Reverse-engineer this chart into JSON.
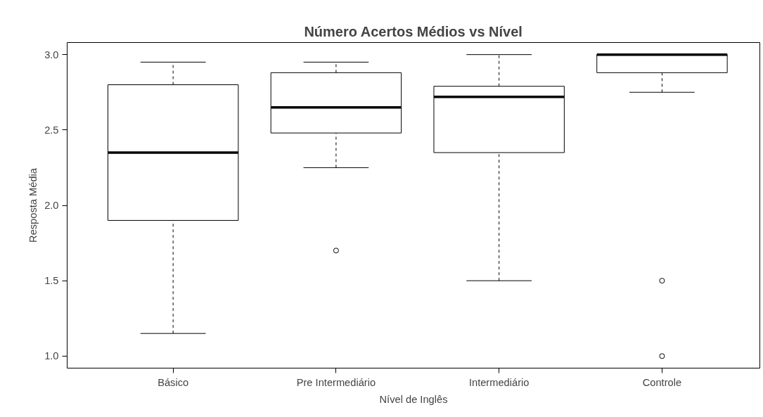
{
  "chart_data": {
    "type": "box",
    "title": "Número Acertos Médios vs Nível",
    "xlabel": "Nível de Inglês",
    "ylabel": "Resposta Média",
    "categories": [
      "Básico",
      "Pre Intermediário",
      "Intermediário",
      "Controle"
    ],
    "boxes": [
      {
        "low": 1.15,
        "q1": 1.9,
        "median": 2.35,
        "q3": 2.8,
        "high": 2.95
      },
      {
        "low": 2.25,
        "q1": 2.48,
        "median": 2.65,
        "q3": 2.88,
        "high": 2.95,
        "outliers": [
          1.7
        ]
      },
      {
        "low": 1.5,
        "q1": 2.35,
        "median": 2.72,
        "q3": 2.79,
        "high": 3.0
      },
      {
        "low": 2.75,
        "q1": 2.88,
        "median": 3.0,
        "q3": 3.0,
        "high": 3.0,
        "outliers": [
          1.5,
          1.0
        ]
      }
    ],
    "ylim": [
      0.92,
      3.08
    ],
    "yticks": [
      {
        "value": 1.0,
        "label": "1.0"
      },
      {
        "value": 1.5,
        "label": "1.5"
      },
      {
        "value": 2.0,
        "label": "2.0"
      },
      {
        "value": 2.5,
        "label": "2.5"
      },
      {
        "value": 3.0,
        "label": "3.0"
      }
    ]
  }
}
